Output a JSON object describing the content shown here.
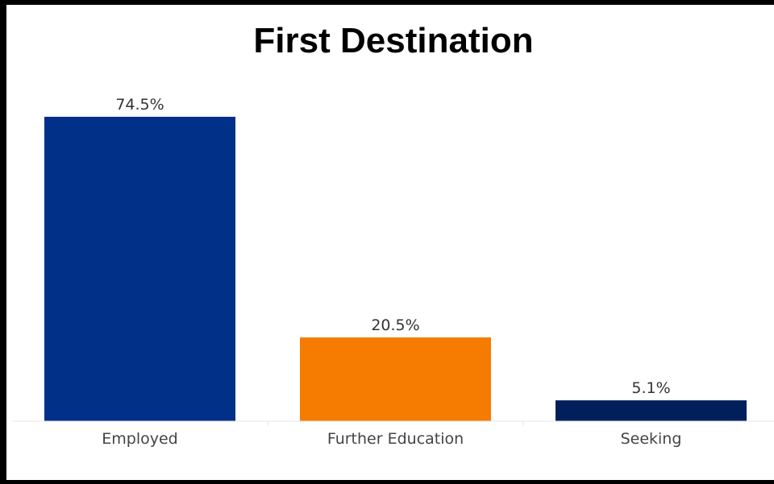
{
  "chart_data": {
    "type": "bar",
    "title": "First Destination",
    "categories": [
      "Employed",
      "Further Education",
      "Seeking"
    ],
    "values": [
      74.5,
      20.5,
      5.1
    ],
    "value_labels": [
      "74.5%",
      "20.5%",
      "5.1%"
    ],
    "colors": [
      "#003087",
      "#f57c00",
      "#001f5b"
    ],
    "ylim": [
      0,
      80
    ],
    "grid": false,
    "legend": "none",
    "xlabel": "",
    "ylabel": ""
  }
}
